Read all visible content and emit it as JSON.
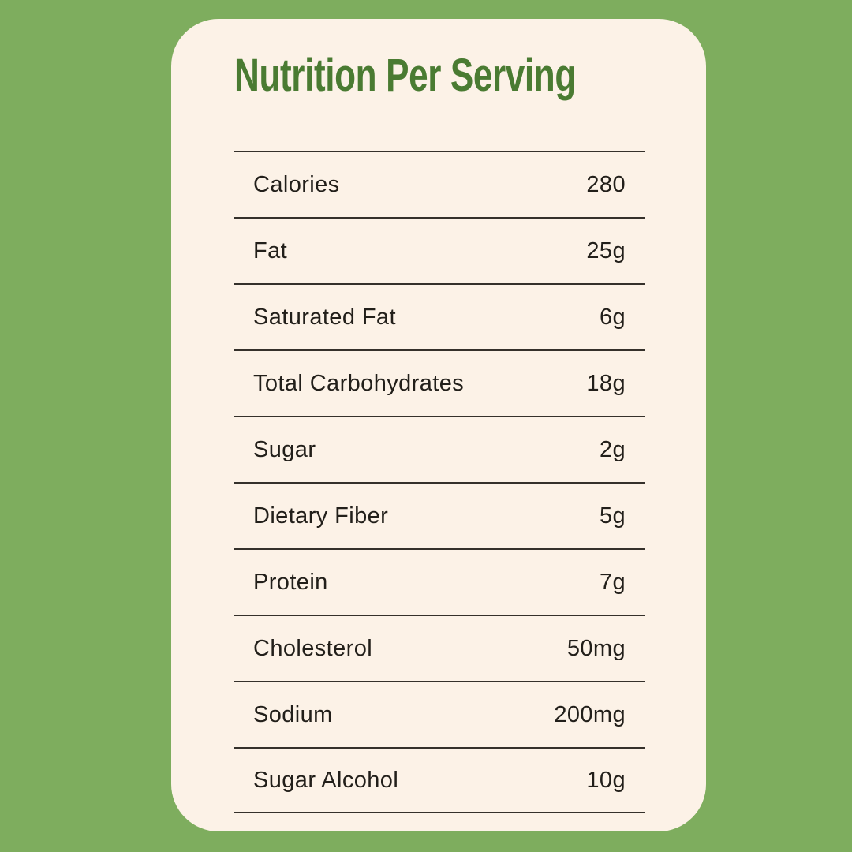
{
  "card": {
    "title": "Nutrition Per Serving",
    "rows": [
      {
        "label": "Calories",
        "value": "280"
      },
      {
        "label": "Fat",
        "value": "25g"
      },
      {
        "label": "Saturated Fat",
        "value": "6g"
      },
      {
        "label": "Total Carbohydrates",
        "value": "18g"
      },
      {
        "label": "Sugar",
        "value": "2g"
      },
      {
        "label": "Dietary Fiber",
        "value": "5g"
      },
      {
        "label": "Protein",
        "value": "7g"
      },
      {
        "label": "Cholesterol",
        "value": "50mg"
      },
      {
        "label": "Sodium",
        "value": "200mg"
      },
      {
        "label": "Sugar Alcohol",
        "value": "10g"
      }
    ]
  },
  "colors": {
    "background": "#7ead5e",
    "card_background": "#fcf2e7",
    "title": "#4a7b32",
    "text": "#221f1a",
    "divider": "#35312b"
  }
}
